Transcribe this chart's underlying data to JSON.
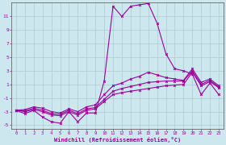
{
  "title": "",
  "xlabel": "Windchill (Refroidissement éolien,°C)",
  "ylabel": "",
  "bg_color": "#cce8ee",
  "line_color": "#990099",
  "grid_color": "#aacccc",
  "x_ticks": [
    0,
    1,
    2,
    3,
    4,
    5,
    6,
    7,
    8,
    9,
    10,
    11,
    12,
    13,
    14,
    15,
    16,
    17,
    18,
    19,
    20,
    21,
    22,
    23
  ],
  "y_ticks": [
    -5,
    -3,
    -1,
    1,
    3,
    5,
    7,
    9,
    11
  ],
  "ylim": [
    -5.5,
    13.0
  ],
  "xlim": [
    -0.5,
    23.5
  ],
  "series1_y": [
    -2.8,
    -3.3,
    -2.8,
    -3.8,
    -4.5,
    -4.7,
    -3.0,
    -4.5,
    -3.2,
    -3.2,
    1.5,
    12.5,
    11.0,
    12.5,
    12.7,
    12.9,
    10.0,
    5.5,
    3.3,
    3.0,
    2.5,
    -0.5,
    1.2,
    -0.5
  ],
  "series2_y": [
    -2.8,
    -3.0,
    -2.7,
    -3.0,
    -3.5,
    -3.6,
    -3.0,
    -3.5,
    -2.8,
    -2.6,
    -1.5,
    -0.5,
    -0.2,
    0.0,
    0.2,
    0.4,
    0.6,
    0.8,
    0.9,
    1.0,
    2.8,
    0.8,
    1.4,
    0.5
  ],
  "series3_y": [
    -2.8,
    -2.9,
    -2.5,
    -2.8,
    -3.3,
    -3.4,
    -2.8,
    -3.3,
    -2.6,
    -2.4,
    -1.2,
    0.0,
    0.4,
    0.7,
    1.0,
    1.3,
    1.4,
    1.5,
    1.5,
    1.5,
    3.0,
    1.0,
    1.6,
    0.6
  ],
  "series4_y": [
    -2.8,
    -2.7,
    -2.3,
    -2.5,
    -3.0,
    -3.2,
    -2.6,
    -3.0,
    -2.3,
    -2.0,
    -0.5,
    0.8,
    1.2,
    1.8,
    2.2,
    2.8,
    2.4,
    2.0,
    1.8,
    1.6,
    3.3,
    1.3,
    1.8,
    0.8
  ],
  "figsize": [
    2.8,
    1.8
  ],
  "dpi": 100
}
